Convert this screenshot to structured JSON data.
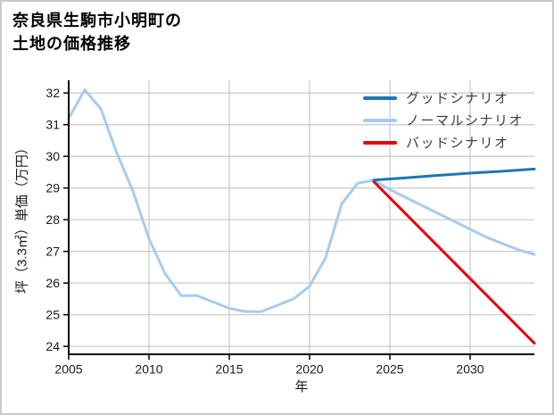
{
  "title": "奈良県生駒市小明町の\n土地の価格推移",
  "chart_data": {
    "type": "line",
    "title": "奈良県生駒市小明町の土地の価格推移",
    "xlabel": "年",
    "ylabel": "坪（3.3㎡）単価（万円）",
    "xlim": [
      2005,
      2034
    ],
    "ylim": [
      23.75,
      32.4
    ],
    "xticks": [
      2005,
      2010,
      2015,
      2020,
      2025,
      2030
    ],
    "yticks": [
      24,
      25,
      26,
      27,
      28,
      29,
      30,
      31,
      32
    ],
    "grid": true,
    "legend_position": "upper right",
    "colors": {
      "grid": "#cccccc",
      "spine": "#000000",
      "good": "#1f77b4",
      "normal": "#a6cbf0",
      "bad": "#e8000b"
    },
    "series": [
      {
        "id": "good",
        "name": "グッドシナリオ",
        "color": "#1f77b4",
        "points": [
          [
            2024,
            29.25
          ],
          [
            2026,
            29.32
          ],
          [
            2028,
            29.4
          ],
          [
            2030,
            29.47
          ],
          [
            2032,
            29.53
          ],
          [
            2034,
            29.6
          ]
        ]
      },
      {
        "id": "normal",
        "name": "ノーマルシナリオ",
        "color": "#a6cbf0",
        "points": [
          [
            2005,
            31.2
          ],
          [
            2006,
            32.1
          ],
          [
            2007,
            31.5
          ],
          [
            2008,
            30.1
          ],
          [
            2009,
            28.9
          ],
          [
            2010,
            27.4
          ],
          [
            2011,
            26.3
          ],
          [
            2012,
            25.6
          ],
          [
            2013,
            25.6
          ],
          [
            2014,
            25.4
          ],
          [
            2015,
            25.2
          ],
          [
            2016,
            25.1
          ],
          [
            2017,
            25.1
          ],
          [
            2018,
            25.3
          ],
          [
            2019,
            25.5
          ],
          [
            2020,
            25.9
          ],
          [
            2021,
            26.8
          ],
          [
            2022,
            28.5
          ],
          [
            2023,
            29.15
          ],
          [
            2024,
            29.25
          ],
          [
            2025,
            28.95
          ],
          [
            2026,
            28.7
          ],
          [
            2027,
            28.45
          ],
          [
            2028,
            28.2
          ],
          [
            2029,
            27.95
          ],
          [
            2030,
            27.7
          ],
          [
            2031,
            27.45
          ],
          [
            2032,
            27.25
          ],
          [
            2033,
            27.05
          ],
          [
            2034,
            26.9
          ]
        ]
      },
      {
        "id": "bad",
        "name": "バッドシナリオ",
        "color": "#e8000b",
        "points": [
          [
            2024,
            29.2
          ],
          [
            2029,
            26.65
          ],
          [
            2034,
            24.1
          ]
        ]
      }
    ]
  }
}
